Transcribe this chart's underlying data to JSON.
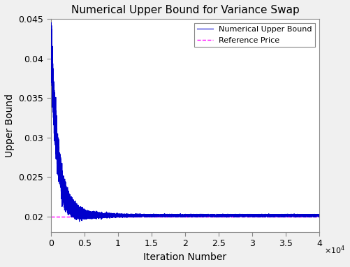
{
  "title": "Numerical Upper Bound for Variance Swap",
  "xlabel": "Iteration Number",
  "ylabel": "Upper Bound",
  "xlim": [
    0,
    40000
  ],
  "ylim": [
    0.018,
    0.045
  ],
  "yticks": [
    0.02,
    0.025,
    0.03,
    0.035,
    0.04,
    0.045
  ],
  "xtick_labels": [
    "0",
    "0.5",
    "1",
    "1.5",
    "2",
    "2.5",
    "3",
    "3.5",
    "4"
  ],
  "xtick_positions": [
    0,
    5000,
    10000,
    15000,
    20000,
    25000,
    30000,
    35000,
    40000
  ],
  "reference_price": 0.02,
  "reference_color": "#FF00FF",
  "line_color": "#0000CC",
  "background_color": "#ffffff",
  "fig_background": "#f0f0f0",
  "legend_labels": [
    "Numerical Upper Bound",
    "Reference Price"
  ],
  "n_iterations": 40000,
  "initial_value": 0.0425,
  "converge_value": 0.0201,
  "noise_amplitude_early": 0.0015,
  "noise_amplitude_late": 0.0002
}
